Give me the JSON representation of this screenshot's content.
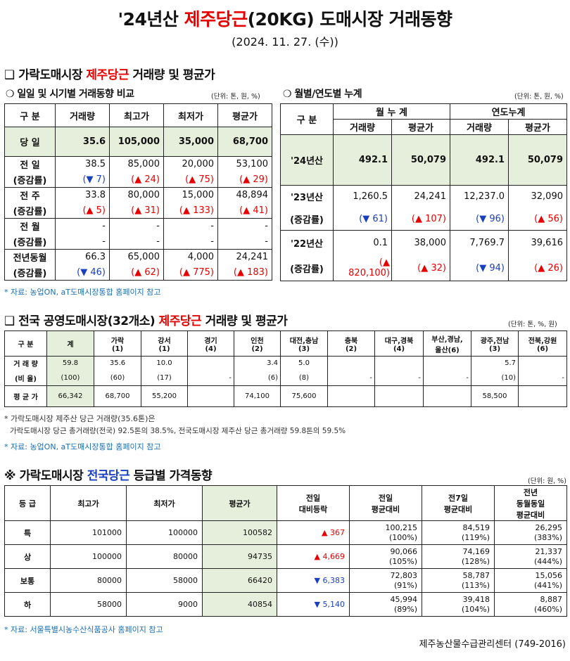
{
  "title": {
    "prefix": "'24년산 ",
    "red": "제주당근",
    "suffix": "(20KG) 도매시장 거래동향"
  },
  "date": "(2024. 11. 27. (수))",
  "sec1": {
    "heading_prefix": "❑ 가락도매시장 ",
    "heading_red": "제주당근",
    "heading_suffix": " 거래량 및 평균가",
    "left_sub": "❍ 일일 및 시기별 거래동향 비교",
    "left_unit": "(단위: 톤, 원, %)",
    "right_sub": "❍ 월별/연도별 누계",
    "right_unit": "(단위: 톤, 원, %)",
    "left_headers": [
      "구  분",
      "거래량",
      "최고가",
      "최저가",
      "평균가"
    ],
    "today": {
      "label": "당  일",
      "values": [
        "35.6",
        "105,000",
        "35,000",
        "68,700"
      ]
    },
    "rows": [
      {
        "label1": "전  일",
        "label2": "(증감률)",
        "values": [
          "38.5",
          "85,000",
          "20,000",
          "53,100"
        ],
        "changes": [
          "(▼ 7)",
          "(▲ 24)",
          "(▲ 75)",
          "(▲ 29)"
        ]
      },
      {
        "label1": "전  주",
        "label2": "(증감률)",
        "values": [
          "33.8",
          "80,000",
          "15,000",
          "48,894"
        ],
        "changes": [
          "(▲ 5)",
          "(▲ 31)",
          "(▲ 133)",
          "(▲ 41)"
        ]
      },
      {
        "label1": "전  월",
        "label2": "(증감률)",
        "values": [
          "-",
          "-",
          "-",
          "-"
        ],
        "changes": [
          "-",
          "-",
          "-",
          "-"
        ]
      },
      {
        "label1": "전년동월",
        "label2": "(증감률)",
        "values": [
          "66.3",
          "65,000",
          "4,000",
          "24,241"
        ],
        "changes": [
          "(▼ 46)",
          "(▲ 62)",
          "(▲ 775)",
          "(▲ 183)"
        ]
      }
    ],
    "right_headers": {
      "gubun": "구  분",
      "monthly": "월 누 계",
      "yearly": "연도누계",
      "sub": [
        "거래량",
        "평균가",
        "거래량",
        "평균가"
      ]
    },
    "right_rows": [
      {
        "label": "'24년산",
        "values": [
          "492.1",
          "50,079",
          "492.1",
          "50,079"
        ]
      },
      {
        "label": "'23년산",
        "label2": "(증감률)",
        "values": [
          "1,260.5",
          "24,241",
          "12,237.0",
          "32,090"
        ],
        "changes": [
          "(▼ 61)",
          "(▲ 107)",
          "(▼ 96)",
          "(▲ 56)"
        ]
      },
      {
        "label": "'22년산",
        "label2": "(증감률)",
        "values": [
          "0.1",
          "38,000",
          "7,769.7",
          "39,616"
        ],
        "changes": [
          "(▲ 820,100)",
          "(▲ 32)",
          "(▼ 94)",
          "(▲ 26)"
        ]
      }
    ],
    "source": "* 자료: 농업ON, aT도매시장통합 홈페이지 참고"
  },
  "sec2": {
    "heading_prefix": "❑ 전국 공영도매시장(32개소) ",
    "heading_red": "제주당근",
    "heading_suffix": " 거래량 및 평균가",
    "unit": "(단위: 톤, %, 원)",
    "headers": [
      {
        "l1": "구  분",
        "l2": ""
      },
      {
        "l1": "계",
        "l2": ""
      },
      {
        "l1": "가락",
        "l2": "(1)"
      },
      {
        "l1": "강서",
        "l2": "(1)"
      },
      {
        "l1": "경기",
        "l2": "(4)"
      },
      {
        "l1": "인천",
        "l2": "(2)"
      },
      {
        "l1": "대전,충남",
        "l2": "(3)"
      },
      {
        "l1": "충북",
        "l2": "(2)"
      },
      {
        "l1": "대구,경북",
        "l2": "(4)"
      },
      {
        "l1": "부산,경남,",
        "l2": "울산(6)"
      },
      {
        "l1": "광주,전남",
        "l2": "(3)"
      },
      {
        "l1": "전북,강원",
        "l2": "(6)"
      }
    ],
    "row_volume": {
      "label": "거 래 량",
      "values": [
        "59.8",
        "35.6",
        "10.0",
        "",
        "3.4",
        "5.0",
        "",
        "",
        "",
        "5.7",
        ""
      ]
    },
    "row_ratio": {
      "label": "(비 율)",
      "values": [
        "(100)",
        "(60)",
        "(17)",
        "-",
        "(6)",
        "(8)",
        "-",
        "-",
        "-",
        "(10)",
        "-"
      ]
    },
    "row_avg": {
      "label": "평 균 가",
      "values": [
        "66,342",
        "68,700",
        "55,200",
        "",
        "74,100",
        "75,600",
        "",
        "",
        "",
        "58,500",
        ""
      ]
    },
    "note1": "* 가락도매시장 제주산 당근 거래량(35.6톤)은",
    "note2": "가락도매시장 당근 총거래량(전국) 92.5톤의 38.5%, 전국도매시장 제주산 당근 총거래량 59.8톤의 59.5%",
    "source": "* 자료: 농업ON, aT도매시장통합 홈페이지 참고"
  },
  "sec3": {
    "heading_prefix": "※ 가락도매시장 ",
    "heading_blue": "전국당근",
    "heading_suffix": " 등급별 가격동향",
    "unit": "(단위: 원, %)",
    "headers": [
      "등  급",
      "최고가",
      "최저가",
      "평균가",
      "전일|대비등락",
      "전일|평균대비",
      "전7일|평균대비",
      "전년|동월동일|평균대비"
    ],
    "rows": [
      {
        "grade": "특",
        "max": "101000",
        "min": "100000",
        "avg": "100582",
        "diff": "▲ 367",
        "dir": "up",
        "c1": "100,215",
        "c1p": "(100%)",
        "c2": "84,519",
        "c2p": "(119%)",
        "c3": "26,295",
        "c3p": "(383%)"
      },
      {
        "grade": "상",
        "max": "100000",
        "min": "80000",
        "avg": "94735",
        "diff": "▲ 4,669",
        "dir": "up",
        "c1": "90,066",
        "c1p": "(105%)",
        "c2": "74,169",
        "c2p": "(128%)",
        "c3": "21,337",
        "c3p": "(444%)"
      },
      {
        "grade": "보통",
        "max": "80000",
        "min": "58000",
        "avg": "66420",
        "diff": "▼ 6,383",
        "dir": "dn",
        "c1": "72,803",
        "c1p": "(91%)",
        "c2": "58,787",
        "c2p": "(113%)",
        "c3": "15,056",
        "c3p": "(441%)"
      },
      {
        "grade": "하",
        "max": "58000",
        "min": "9000",
        "avg": "40854",
        "diff": "▼ 5,140",
        "dir": "dn",
        "c1": "45,994",
        "c1p": "(89%)",
        "c2": "39,418",
        "c2p": "(104%)",
        "c3": "8,887",
        "c3p": "(460%)"
      }
    ],
    "source": "* 자료: 서울특별시농수산식품공사 홈페이지 참고",
    "footer": "제주농산물수급관리센터 (749-2016)"
  }
}
